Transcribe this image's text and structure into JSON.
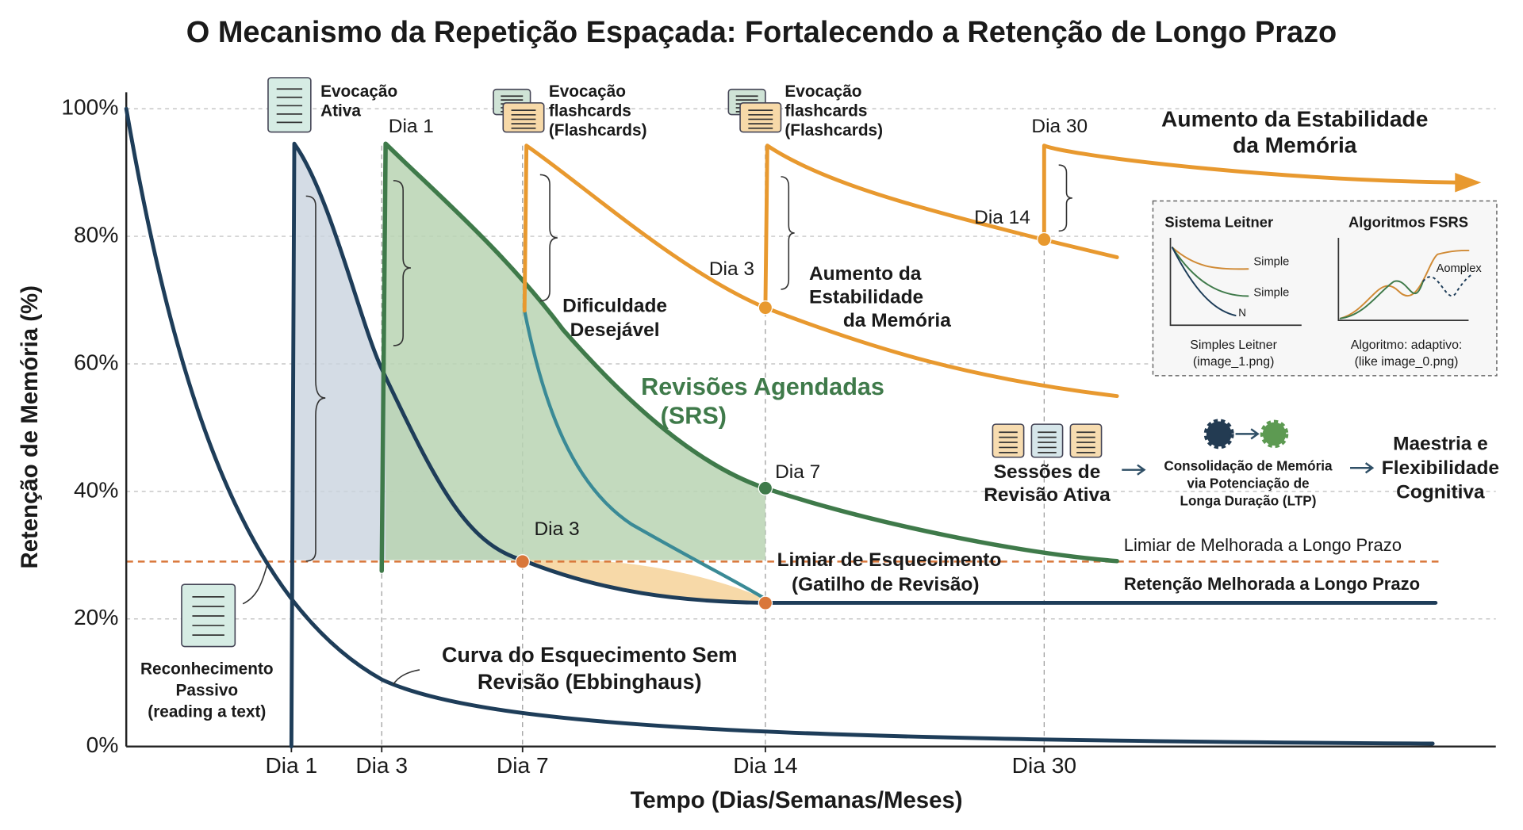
{
  "chart_data": {
    "type": "line",
    "title": "O Mecanismo da Repetição Espaçada: Fortalecendo a Retenção de Longo Prazo",
    "y_label": "Retenção de Memória (%)",
    "x_label": "Tempo (Dias/Semanas/Meses)",
    "ylim": [
      0,
      100
    ],
    "yticks": [
      {
        "value": 0,
        "label": "0%"
      },
      {
        "value": 20,
        "label": "20%"
      },
      {
        "value": 40,
        "label": "40%"
      },
      {
        "value": 60,
        "label": "60%"
      },
      {
        "value": 80,
        "label": "80%"
      },
      {
        "value": 100,
        "label": "100%"
      }
    ],
    "grid": true,
    "categories": [
      "Dia 1",
      "Dia 3",
      "Dia 7",
      "Dia 14",
      "Dia 30"
    ],
    "threshold": 29,
    "points": {
      "values": [
        29,
        22.5,
        40.5,
        68.8,
        79.5
      ],
      "colors": [
        "#d9773a",
        "#d9773a",
        "#3f7a4a",
        "#e8992f",
        "#e8992f"
      ]
    },
    "annotations": [
      [
        "Evocação",
        "Ativa"
      ],
      [
        "Dia 1"
      ],
      [
        "Evocação",
        "flashcards",
        "(Flashcards)"
      ],
      [
        "Evocação",
        "flashcards",
        "(Flashcards)"
      ],
      [
        "Dia 30"
      ],
      [
        "Aumento da Estabilidade",
        "da Memória"
      ],
      [
        "Dia 14"
      ],
      [
        "Dia 3"
      ],
      [
        "Aumento da",
        "Estabilidade",
        "da Memória"
      ],
      [
        "Dificuldade",
        "Desejável"
      ],
      [
        "Revisões Agendadas",
        "(SRS)"
      ],
      [
        "Dia 7"
      ],
      [
        "Dia 3"
      ],
      [
        "Limiar de Esquecimento",
        "(Gatilho de Revisão)"
      ],
      [
        "Limiar de Melhorada a Longo Prazo"
      ],
      [
        "Retenção Melhorada a Longo Prazo"
      ],
      [
        "Curva do Esquecimento Sem",
        "Revisão (Ebbinghaus)"
      ],
      [
        "Reconhecimento",
        "Passivo",
        "(reading a text)"
      ],
      [
        "Sessões de",
        "Revisão Ativa"
      ],
      [
        "Consolidação de Memória",
        "via Potenciação de",
        "Longa Duração (LTP)"
      ],
      [
        "Maestria e",
        "Flexibilidade",
        "Cognitiva"
      ]
    ],
    "inset": [
      "Sistema Leitner",
      "Algoritmos FSRS",
      "Simple",
      "Simple",
      "N",
      "Aomplex",
      "Simples Leitner",
      "(image_1.png)",
      "Algoritmo: adaptivo:",
      "(like image_0.png)"
    ]
  }
}
